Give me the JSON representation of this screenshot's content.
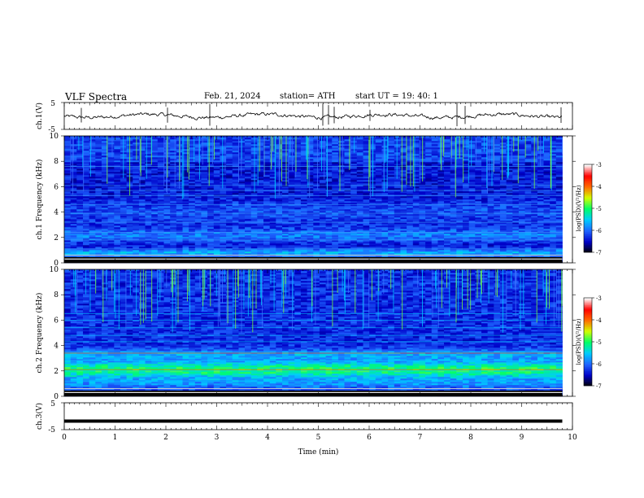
{
  "header": {
    "title": "VLF  Spectra",
    "date": "Feb. 21, 2024",
    "station": "station= ATH",
    "start": "start  UT  =    19: 40: 1"
  },
  "chart_data": [
    {
      "type": "line",
      "ylabel": "ch.1(V)",
      "ylim": [
        -5,
        5
      ],
      "yticks": [
        "5",
        "-5"
      ],
      "xlim": [
        0,
        10
      ],
      "description_series": "waveform near 0 V with spikes",
      "x_extent_min": [
        0,
        9.8
      ]
    },
    {
      "type": "heatmap",
      "ylabel": "ch.1 Frequency  (kHz)",
      "ylim": [
        0,
        10
      ],
      "yticks": [
        "0",
        "2",
        "4",
        "6",
        "8",
        "10"
      ],
      "xlim": [
        0,
        10
      ],
      "colorbar": {
        "label": "log(PSD)(V²/Hz)",
        "range": [
          -7,
          -3
        ],
        "ticks": [
          "-3",
          "-4",
          "-5",
          "-6",
          "-7"
        ],
        "colors": [
          "#000000",
          "#0000c8",
          "#1e64ff",
          "#00ccff",
          "#00ff66",
          "#d2ff00",
          "#ff6a00",
          "#ff0000",
          "#ffffff"
        ]
      }
    },
    {
      "type": "heatmap",
      "ylabel": "ch.2 Frequency  (kHz)",
      "ylim": [
        0,
        10
      ],
      "yticks": [
        "0",
        "2",
        "4",
        "6",
        "8",
        "10"
      ],
      "xlim": [
        0,
        10
      ],
      "colorbar": {
        "label": "log(PSD)(V²/Hz)",
        "range": [
          -7,
          -3
        ],
        "ticks": [
          "-3",
          "-4",
          "-5",
          "-6",
          "-7"
        ],
        "colors": [
          "#000000",
          "#0000c8",
          "#1e64ff",
          "#00ccff",
          "#00ff66",
          "#d2ff00",
          "#ff6a00",
          "#ff0000",
          "#ffffff"
        ]
      }
    },
    {
      "type": "line",
      "ylabel": "ch.3(V)",
      "ylim": [
        -5,
        5
      ],
      "yticks": [
        "5",
        "-5"
      ],
      "xlim": [
        0,
        10
      ],
      "xlabel": "Time  (min)",
      "xticks": [
        "0",
        "1",
        "2",
        "3",
        "4",
        "5",
        "6",
        "7",
        "8",
        "9",
        "10"
      ],
      "flat_value": -1.8
    }
  ]
}
